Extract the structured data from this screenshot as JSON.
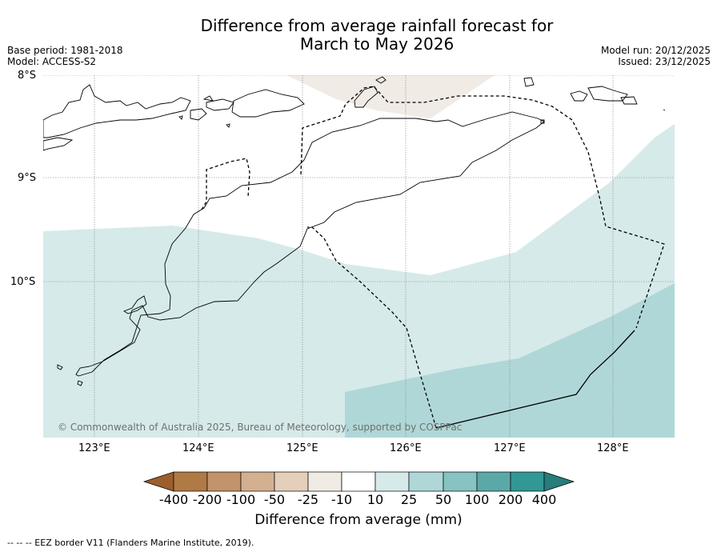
{
  "title_line1": "Difference from average rainfall forecast for",
  "title_line2": "March to May 2026",
  "base_period": "Base period: 1981-2018",
  "model": "Model: ACCESS-S2",
  "model_run": "Model run: 20/12/2025",
  "issued": "Issued: 23/12/2025",
  "lat_labels": [
    "8°S",
    "9°S",
    "10°S"
  ],
  "lon_labels": [
    "123°E",
    "124°E",
    "125°E",
    "126°E",
    "127°E",
    "128°E"
  ],
  "copyright": "© Commonwealth of Australia 2025, Bureau of Meteorology, supported by COSPPac",
  "colorbar": {
    "labels": [
      "-400",
      "-200",
      "-100",
      "-50",
      "-25",
      "-10",
      "10",
      "25",
      "50",
      "100",
      "200",
      "400"
    ],
    "colors": [
      "#9c5f2c",
      "#b07a45",
      "#c3936b",
      "#d3b08f",
      "#e3cfba",
      "#f1ebe5",
      "#ffffff",
      "#d6eaea",
      "#b0d7d7",
      "#86c3c1",
      "#5aa9a8",
      "#319895",
      "#267d7b"
    ],
    "label": "Difference from average (mm)"
  },
  "footnote": "--  --  -- EEZ border V11 (Flanders Marine Institute, 2019)."
}
